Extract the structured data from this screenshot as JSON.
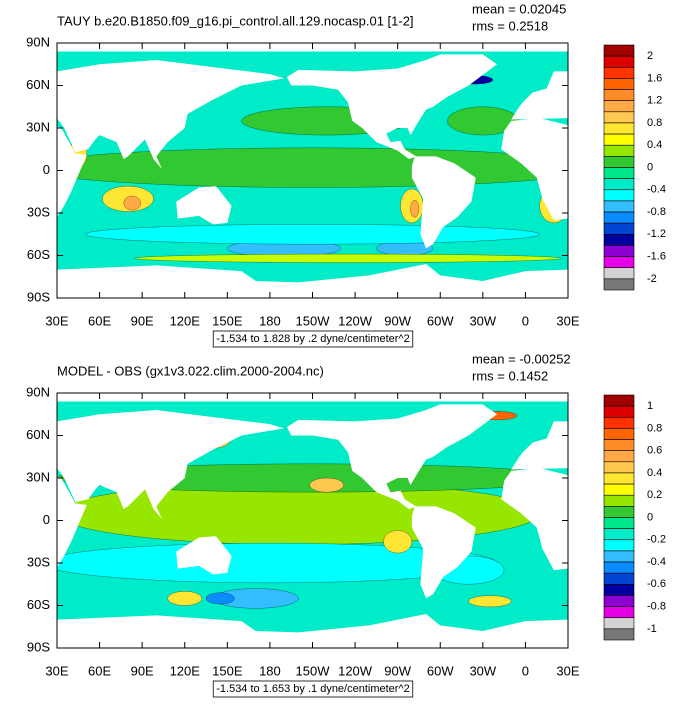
{
  "panels": [
    {
      "title": "TAUY b.e20.B1850.f09_g16.pi_control.all.129.nocasp.01 [1-2]",
      "mean": "mean = 0.02045",
      "rms": "rms = 0.2518",
      "caption": "-1.534 to 1.828 by .2 dyne/centimeter^2",
      "lat_labels": [
        "90N",
        "60N",
        "30N",
        "0",
        "30S",
        "60S",
        "90S"
      ],
      "lon_labels": [
        "30E",
        "60E",
        "90E",
        "120E",
        "150E",
        "180",
        "150W",
        "120W",
        "90W",
        "60W",
        "30W",
        "0",
        "30E"
      ],
      "colorbar_labels": [
        "2",
        "1.6",
        "1.2",
        "0.8",
        "0.4",
        "0",
        "-0.4",
        "-0.8",
        "-1.2",
        "-1.6",
        "-2"
      ]
    },
    {
      "title": "MODEL - OBS (gx1v3.022.clim.2000-2004.nc)",
      "mean": "mean = -0.00252",
      "rms": "rms = 0.1452",
      "caption": "-1.534 to 1.653 by .1 dyne/centimeter^2",
      "lat_labels": [
        "90N",
        "60N",
        "30N",
        "0",
        "30S",
        "60S",
        "90S"
      ],
      "lon_labels": [
        "30E",
        "60E",
        "90E",
        "120E",
        "150E",
        "180",
        "150W",
        "120W",
        "90W",
        "60W",
        "30W",
        "0",
        "30E"
      ],
      "colorbar_labels": [
        "1",
        "0.8",
        "0.6",
        "0.4",
        "0.2",
        "0",
        "-0.2",
        "-0.4",
        "-0.6",
        "-0.8",
        "-1"
      ]
    }
  ]
}
